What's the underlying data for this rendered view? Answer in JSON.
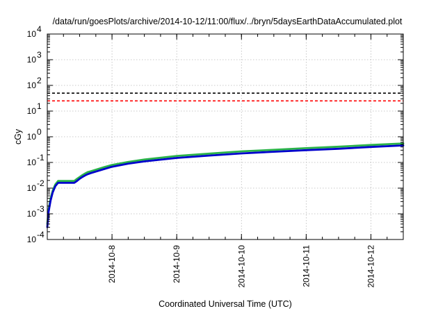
{
  "chart_data": {
    "type": "line",
    "title": "/data/run/goesPlots/archive/2014-10-12/11:00/flux/../bryn/5daysEarthDataAccumulated.plot",
    "xlabel": "Coordinated Universal Time (UTC)",
    "ylabel": "cGy",
    "y_scale": "log",
    "ylim": [
      0.0001,
      10000
    ],
    "xlim": [
      "2014-10-07T00:00",
      "2014-10-12T12:00"
    ],
    "grid": true,
    "x_ticks": [
      "2014-10-8",
      "2014-10-9",
      "2014-10-10",
      "2014-10-11",
      "2014-10-12"
    ],
    "y_ticks": [
      {
        "base": "10",
        "exp": "-4",
        "value": 0.0001
      },
      {
        "base": "10",
        "exp": "-3",
        "value": 0.001
      },
      {
        "base": "10",
        "exp": "-2",
        "value": 0.01
      },
      {
        "base": "10",
        "exp": "-1",
        "value": 0.1
      },
      {
        "base": "10",
        "exp": "0",
        "value": 1
      },
      {
        "base": "10",
        "exp": "1",
        "value": 10
      },
      {
        "base": "10",
        "exp": "2",
        "value": 100
      },
      {
        "base": "10",
        "exp": "3",
        "value": 1000
      },
      {
        "base": "10",
        "exp": "4",
        "value": 10000
      }
    ],
    "reference_lines": [
      {
        "y": 50,
        "color": "#000000",
        "style": "dashed"
      },
      {
        "y": 25,
        "color": "#ff0000",
        "style": "dashed"
      }
    ],
    "series": [
      {
        "color": "#2ab24a",
        "x": [
          "2014-10-07T00:00",
          "2014-10-07T00:30",
          "2014-10-07T01:15",
          "2014-10-07T02:00",
          "2014-10-07T03:00",
          "2014-10-07T04:00",
          "2014-10-07T05:00",
          "2014-10-07T06:00",
          "2014-10-07T08:00",
          "2014-10-07T10:00",
          "2014-10-07T11:00",
          "2014-10-07T12:00",
          "2014-10-07T13:00",
          "2014-10-07T14:00",
          "2014-10-07T15:00",
          "2014-10-07T16:00",
          "2014-10-07T18:00",
          "2014-10-07T21:00",
          "2014-10-08T00:00",
          "2014-10-08T06:00",
          "2014-10-08T12:00",
          "2014-10-09T00:00",
          "2014-10-09T12:00",
          "2014-10-10T00:00",
          "2014-10-10T12:00",
          "2014-10-11T00:00",
          "2014-10-11T12:00",
          "2014-10-12T00:00",
          "2014-10-12T12:00"
        ],
        "y": [
          0.0004,
          0.0015,
          0.004,
          0.008,
          0.014,
          0.019,
          0.019,
          0.019,
          0.019,
          0.019,
          0.023,
          0.027,
          0.032,
          0.037,
          0.042,
          0.045,
          0.052,
          0.065,
          0.08,
          0.105,
          0.13,
          0.18,
          0.22,
          0.27,
          0.31,
          0.36,
          0.41,
          0.48,
          0.55
        ]
      },
      {
        "color": "#0000cc",
        "x": [
          "2014-10-07T00:00",
          "2014-10-07T00:30",
          "2014-10-07T01:15",
          "2014-10-07T02:00",
          "2014-10-07T03:00",
          "2014-10-07T04:00",
          "2014-10-07T05:00",
          "2014-10-07T06:00",
          "2014-10-07T08:00",
          "2014-10-07T10:00",
          "2014-10-07T11:00",
          "2014-10-07T12:00",
          "2014-10-07T13:00",
          "2014-10-07T14:00",
          "2014-10-07T15:00",
          "2014-10-07T16:00",
          "2014-10-07T18:00",
          "2014-10-07T21:00",
          "2014-10-08T00:00",
          "2014-10-08T06:00",
          "2014-10-08T12:00",
          "2014-10-09T00:00",
          "2014-10-09T12:00",
          "2014-10-10T00:00",
          "2014-10-10T12:00",
          "2014-10-11T00:00",
          "2014-10-11T12:00",
          "2014-10-12T00:00",
          "2014-10-12T12:00"
        ],
        "y": [
          0.0003,
          0.0012,
          0.0033,
          0.0068,
          0.012,
          0.016,
          0.016,
          0.016,
          0.016,
          0.016,
          0.019,
          0.023,
          0.027,
          0.031,
          0.035,
          0.038,
          0.044,
          0.055,
          0.068,
          0.09,
          0.11,
          0.15,
          0.185,
          0.225,
          0.26,
          0.3,
          0.34,
          0.4,
          0.46
        ]
      }
    ]
  }
}
